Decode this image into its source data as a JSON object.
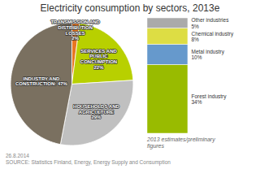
{
  "chart_data": [
    {
      "type": "pie",
      "title": "Electricity consumption by sectors, 2013e",
      "categories": [
        "TRANSMISSION AND\nDISTRIBUTION\nLOSSES\n2%",
        "SERVICES AND\nPUBLIC\nCONCUMPTION\n22%",
        "HOUSEHOLDS AND\nAGRICULTURE\n29%",
        "INDUSTRY AND\nCONSTRUCTION: 47%"
      ],
      "values": [
        2,
        22,
        29,
        47
      ],
      "colors": [
        "#e87722",
        "#b8d000",
        "#c0c0c0",
        "#7a7060"
      ],
      "annotations": [
        "26.8.2014\nSOURCE: Statistics Finland, Energy, Energy Supply and Consumption"
      ]
    },
    {
      "type": "bar",
      "stacked": true,
      "categories": [
        "Forest industry\n34%",
        "Metal industry\n10%",
        "Chemical industry\n8%",
        "Other industries\n5%"
      ],
      "values": [
        34,
        10,
        8,
        5
      ],
      "colors": [
        "#99bb00",
        "#6699cc",
        "#dddd44",
        "#aaaaaa"
      ],
      "ylim": [
        0,
        57
      ],
      "tick_labels": false,
      "annotations": [
        "2013 estimates/preliminary\nfigures"
      ]
    }
  ]
}
